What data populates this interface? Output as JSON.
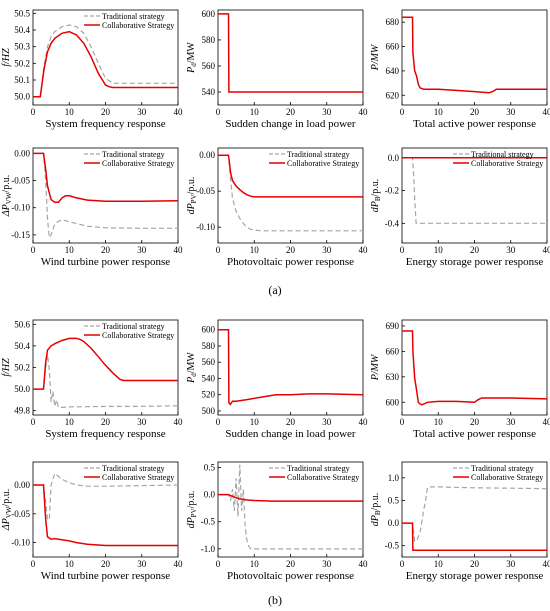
{
  "figure_labels": {
    "a": "(a)",
    "b": "(b)"
  },
  "colors": {
    "traditional": "#a6a6a6",
    "collaborative": "#e60000"
  },
  "chart_data": [
    {
      "group": "a",
      "type": "line",
      "title": "System frequency response",
      "ylabel": "f/HZ",
      "xlim": [
        0,
        40
      ],
      "ylim": [
        49.95,
        50.52
      ],
      "xticks": [
        0,
        10,
        20,
        30,
        40
      ],
      "yticks": [
        50.0,
        50.1,
        50.2,
        50.3,
        50.4,
        50.5
      ],
      "ytick_labels": [
        "50.0",
        "50.1",
        "50.2",
        "50.3",
        "50.4",
        "50.5"
      ],
      "legend": [
        "Traditional strategy",
        "Collaborative Strategy"
      ],
      "series": [
        {
          "name": "Traditional strategy",
          "style": "dashed",
          "x": [
            0,
            2,
            3,
            4,
            5,
            6,
            8,
            10,
            12,
            14,
            16,
            18,
            20,
            22,
            24,
            30,
            40
          ],
          "y": [
            50.0,
            50.0,
            50.18,
            50.3,
            50.36,
            50.39,
            50.42,
            50.43,
            50.42,
            50.38,
            50.3,
            50.2,
            50.11,
            50.08,
            50.08,
            50.08,
            50.08
          ]
        },
        {
          "name": "Collaborative Strategy",
          "style": "solid",
          "x": [
            0,
            2,
            3,
            4,
            5,
            6,
            8,
            10,
            12,
            14,
            16,
            18,
            20,
            21,
            22,
            24,
            30,
            40
          ],
          "y": [
            50.0,
            50.0,
            50.16,
            50.27,
            50.32,
            50.35,
            50.38,
            50.39,
            50.37,
            50.32,
            50.24,
            50.14,
            50.07,
            50.06,
            50.055,
            50.055,
            50.055,
            50.055
          ]
        }
      ]
    },
    {
      "group": "a",
      "type": "line",
      "title": "Sudden change in load power",
      "ylabel": "Pd/MW",
      "xlim": [
        0,
        40
      ],
      "ylim": [
        530,
        603
      ],
      "xticks": [
        0,
        10,
        20,
        30,
        40
      ],
      "yticks": [
        540,
        560,
        580,
        600
      ],
      "ytick_labels": [
        "540",
        "560",
        "580",
        "600"
      ],
      "legend": [],
      "series": [
        {
          "name": "",
          "style": "solid",
          "x": [
            0,
            2.9,
            3,
            40
          ],
          "y": [
            600,
            600,
            540,
            540
          ]
        }
      ]
    },
    {
      "group": "a",
      "type": "line",
      "title": "Total active power response",
      "ylabel": "P/MW",
      "xlim": [
        0,
        40
      ],
      "ylim": [
        612,
        690
      ],
      "xticks": [
        0,
        10,
        20,
        30,
        40
      ],
      "yticks": [
        620,
        640,
        660,
        680
      ],
      "ytick_labels": [
        "620",
        "640",
        "660",
        "680"
      ],
      "legend": [],
      "series": [
        {
          "name": "",
          "style": "solid",
          "x": [
            0,
            2.9,
            3,
            3.5,
            4,
            4.5,
            5,
            6,
            10,
            15,
            20,
            24,
            25,
            26,
            30,
            40
          ],
          "y": [
            684,
            684,
            655,
            640,
            636,
            629,
            626,
            625,
            625,
            624,
            623,
            622,
            623,
            625,
            625,
            625
          ]
        }
      ]
    },
    {
      "group": "a",
      "type": "line",
      "title": "Wind turbine power response",
      "ylabel": "ΔPVW/p.u.",
      "xlim": [
        0,
        40
      ],
      "ylim": [
        -0.165,
        0.01
      ],
      "xticks": [
        0,
        10,
        20,
        30,
        40
      ],
      "yticks": [
        0.0,
        -0.05,
        -0.1,
        -0.15
      ],
      "ytick_labels": [
        "0.00",
        "-0.05",
        "-0.10",
        "-0.15"
      ],
      "legend": [
        "Traditional strategy",
        "Collaborative Strategy"
      ],
      "series": [
        {
          "name": "Traditional strategy",
          "style": "dashed",
          "x": [
            0,
            2.9,
            3.5,
            4,
            4.5,
            5,
            6,
            7,
            8,
            10,
            15,
            20,
            30,
            40
          ],
          "y": [
            0,
            0,
            -0.05,
            -0.12,
            -0.155,
            -0.15,
            -0.13,
            -0.125,
            -0.122,
            -0.126,
            -0.134,
            -0.137,
            -0.138,
            -0.138
          ]
        },
        {
          "name": "Collaborative Strategy",
          "style": "solid",
          "x": [
            0,
            2.9,
            3.5,
            4,
            5,
            6,
            7,
            8,
            9,
            10,
            12,
            15,
            20,
            30,
            40
          ],
          "y": [
            0,
            0,
            -0.03,
            -0.06,
            -0.085,
            -0.09,
            -0.09,
            -0.082,
            -0.078,
            -0.078,
            -0.082,
            -0.086,
            -0.088,
            -0.088,
            -0.087
          ]
        }
      ]
    },
    {
      "group": "a",
      "type": "line",
      "title": "Photovoltaic power response",
      "ylabel": "dPPV/p.u.",
      "xlim": [
        0,
        40
      ],
      "ylim": [
        -0.122,
        0.01
      ],
      "xticks": [
        0,
        10,
        20,
        30,
        40
      ],
      "yticks": [
        0.0,
        -0.05,
        -0.1
      ],
      "ytick_labels": [
        "0.00",
        "-0.05",
        "-0.10"
      ],
      "legend": [
        "Traditional strategy",
        "Collaborative Strategy"
      ],
      "series": [
        {
          "name": "Traditional strategy",
          "style": "dashed",
          "x": [
            0,
            2.9,
            3.5,
            4,
            5,
            6,
            7,
            8,
            9,
            10,
            12,
            20,
            30,
            40
          ],
          "y": [
            0,
            0,
            -0.035,
            -0.06,
            -0.078,
            -0.088,
            -0.095,
            -0.1,
            -0.103,
            -0.104,
            -0.105,
            -0.105,
            -0.105,
            -0.105
          ]
        },
        {
          "name": "Collaborative Strategy",
          "style": "solid",
          "x": [
            0,
            2.9,
            3.5,
            4,
            5,
            6,
            7,
            8,
            9,
            10,
            12,
            20,
            30,
            40
          ],
          "y": [
            0,
            0,
            -0.025,
            -0.035,
            -0.043,
            -0.048,
            -0.052,
            -0.055,
            -0.057,
            -0.058,
            -0.058,
            -0.058,
            -0.058,
            -0.058
          ]
        }
      ]
    },
    {
      "group": "a",
      "type": "line",
      "title": "Energy storage power response",
      "ylabel": "dPB/p.u.",
      "xlim": [
        0,
        40
      ],
      "ylim": [
        -0.52,
        0.06
      ],
      "xticks": [
        0,
        10,
        20,
        30,
        40
      ],
      "yticks": [
        0.0,
        -0.2,
        -0.4
      ],
      "ytick_labels": [
        "0.0",
        "-0.2",
        "-0.4"
      ],
      "legend": [
        "Traditional strategy",
        "Collaborative Strategy"
      ],
      "series": [
        {
          "name": "Traditional strategy",
          "style": "dashed",
          "x": [
            0,
            2.9,
            3.2,
            3.5,
            3.9,
            4,
            10,
            20,
            30,
            40
          ],
          "y": [
            0,
            0,
            -0.1,
            -0.25,
            -0.4,
            -0.4,
            -0.4,
            -0.4,
            -0.4,
            -0.4
          ]
        },
        {
          "name": "Collaborative Strategy",
          "style": "solid",
          "x": [
            0,
            40
          ],
          "y": [
            0,
            0
          ]
        }
      ]
    },
    {
      "group": "b",
      "type": "line",
      "title": "System frequency response",
      "ylabel": "f/HZ",
      "xlim": [
        0,
        40
      ],
      "ylim": [
        49.76,
        50.64
      ],
      "xticks": [
        0,
        10,
        20,
        30,
        40
      ],
      "yticks": [
        49.8,
        50.0,
        50.2,
        50.4,
        50.6
      ],
      "ytick_labels": [
        "49.8",
        "50.0",
        "50.2",
        "50.4",
        "50.6"
      ],
      "legend": [
        "Traditional strategy",
        "Collaborative Strategy"
      ],
      "series": [
        {
          "name": "Traditional strategy",
          "style": "dashed",
          "x": [
            0,
            2.9,
            3.5,
            4,
            4.5,
            5,
            5.5,
            6,
            6.5,
            7,
            8,
            10,
            20,
            30,
            40
          ],
          "y": [
            50.0,
            50.0,
            50.2,
            50.32,
            50.18,
            49.88,
            49.98,
            49.84,
            49.9,
            49.83,
            49.83,
            49.835,
            49.84,
            49.84,
            49.845
          ]
        },
        {
          "name": "Collaborative Strategy",
          "style": "solid",
          "x": [
            0,
            2.9,
            3.5,
            4,
            5,
            6,
            8,
            10,
            12,
            13,
            14,
            16,
            18,
            20,
            22,
            24,
            25,
            30,
            40
          ],
          "y": [
            50.0,
            50.0,
            50.25,
            50.36,
            50.4,
            50.42,
            50.45,
            50.47,
            50.47,
            50.46,
            50.44,
            50.38,
            50.3,
            50.22,
            50.15,
            50.09,
            50.08,
            50.08,
            50.08
          ]
        }
      ]
    },
    {
      "group": "b",
      "type": "line",
      "title": "Sudden change in load power",
      "ylabel": "Pd/MW",
      "xlim": [
        0,
        40
      ],
      "ylim": [
        495,
        612
      ],
      "xticks": [
        0,
        10,
        20,
        30,
        40
      ],
      "yticks": [
        500,
        520,
        540,
        560,
        580,
        600
      ],
      "ytick_labels": [
        "500",
        "520",
        "540",
        "560",
        "580",
        "600"
      ],
      "legend": [],
      "series": [
        {
          "name": "",
          "style": "solid",
          "x": [
            0,
            2.9,
            3,
            3.4,
            4,
            5,
            8,
            12,
            16,
            20,
            25,
            30,
            40
          ],
          "y": [
            600,
            600,
            510,
            508,
            512,
            512,
            514,
            517,
            520,
            520,
            521,
            521,
            520
          ]
        }
      ]
    },
    {
      "group": "b",
      "type": "line",
      "title": "Total active power response",
      "ylabel": "P/MW",
      "xlim": [
        0,
        40
      ],
      "ylim": [
        585,
        697
      ],
      "xticks": [
        0,
        10,
        20,
        30,
        40
      ],
      "yticks": [
        600,
        630,
        660,
        690
      ],
      "ytick_labels": [
        "600",
        "630",
        "660",
        "690"
      ],
      "legend": [],
      "series": [
        {
          "name": "",
          "style": "solid",
          "x": [
            0,
            2.9,
            3,
            3.5,
            4,
            4.5,
            5,
            5.5,
            6,
            7,
            10,
            15,
            20,
            21,
            22,
            25,
            30,
            40
          ],
          "y": [
            684,
            684,
            660,
            628,
            615,
            600,
            598,
            597,
            598,
            600,
            601,
            601,
            600,
            603,
            605,
            605,
            605,
            604
          ]
        }
      ]
    },
    {
      "group": "b",
      "type": "line",
      "title": "Wind turbine power response",
      "ylabel": "ΔPVW/p.u.",
      "xlim": [
        0,
        40
      ],
      "ylim": [
        -0.125,
        0.04
      ],
      "xticks": [
        0,
        10,
        20,
        30,
        40
      ],
      "yticks": [
        0.0,
        -0.05,
        -0.1
      ],
      "ytick_labels": [
        "0.00",
        "-0.05",
        "-0.10"
      ],
      "legend": [
        "Traditional strategy",
        "Collaborative Strategy"
      ],
      "series": [
        {
          "name": "Traditional strategy",
          "style": "dashed",
          "x": [
            0,
            2.9,
            3.5,
            4,
            4.5,
            5,
            6,
            7,
            8,
            10,
            12,
            15,
            20,
            30,
            40
          ],
          "y": [
            0,
            0,
            -0.03,
            -0.06,
            -0.06,
            0.0,
            0.02,
            0.015,
            0.01,
            0.004,
            0.0,
            -0.002,
            -0.002,
            -0.001,
            0.0
          ]
        },
        {
          "name": "Collaborative Strategy",
          "style": "solid",
          "x": [
            0,
            2.9,
            3.5,
            4,
            5,
            6,
            8,
            10,
            12,
            15,
            20,
            25,
            30,
            40
          ],
          "y": [
            0,
            0,
            -0.06,
            -0.09,
            -0.094,
            -0.093,
            -0.095,
            -0.097,
            -0.1,
            -0.103,
            -0.105,
            -0.105,
            -0.105,
            -0.105
          ]
        }
      ]
    },
    {
      "group": "b",
      "type": "line",
      "title": "Photovoltaic power response",
      "ylabel": "dPPV/p.u.",
      "xlim": [
        0,
        40
      ],
      "ylim": [
        -1.15,
        0.6
      ],
      "xticks": [
        0,
        10,
        20,
        30,
        40
      ],
      "yticks": [
        0.5,
        0.0,
        -0.5,
        -1.0
      ],
      "ytick_labels": [
        "0.5",
        "0.0",
        "-0.5",
        "-1.0"
      ],
      "legend": [
        "Traditional strategy",
        "Collaborative Strategy"
      ],
      "series": [
        {
          "name": "Traditional strategy",
          "style": "dashed",
          "x": [
            0,
            2.9,
            3.5,
            4,
            4.5,
            5,
            5.5,
            6,
            6.5,
            7,
            7.5,
            8,
            8.5,
            9,
            10,
            20,
            30,
            40
          ],
          "y": [
            0,
            0,
            -0.1,
            0.1,
            -0.3,
            0.3,
            -0.4,
            0.55,
            -0.3,
            0.1,
            -0.6,
            -0.85,
            -0.95,
            -1.0,
            -1.0,
            -1.0,
            -1.0,
            -1.0
          ]
        },
        {
          "name": "Collaborative Strategy",
          "style": "solid",
          "x": [
            0,
            2.9,
            3.5,
            4,
            5,
            6,
            8,
            10,
            15,
            20,
            30,
            40
          ],
          "y": [
            0,
            0,
            -0.02,
            -0.03,
            -0.06,
            -0.08,
            -0.1,
            -0.11,
            -0.12,
            -0.12,
            -0.12,
            -0.12
          ]
        }
      ]
    },
    {
      "group": "b",
      "type": "line",
      "title": "Energy storage power response",
      "ylabel": "dPB/p.u.",
      "xlim": [
        0,
        40
      ],
      "ylim": [
        -0.75,
        1.35
      ],
      "xticks": [
        0,
        10,
        20,
        30,
        40
      ],
      "yticks": [
        1.0,
        0.5,
        0.0,
        -0.5
      ],
      "ytick_labels": [
        "1.0",
        "0.5",
        "0.0",
        "-0.5"
      ],
      "legend": [
        "Traditional strategy",
        "Collaborative Strategy"
      ],
      "series": [
        {
          "name": "Traditional strategy",
          "style": "dashed",
          "x": [
            0,
            2.9,
            3.5,
            4,
            5,
            6,
            6.5,
            7,
            7.5,
            8,
            10,
            20,
            30,
            40
          ],
          "y": [
            0,
            0,
            -0.4,
            -0.4,
            -0.2,
            0.3,
            0.5,
            0.78,
            0.8,
            0.8,
            0.8,
            0.78,
            0.77,
            0.76
          ]
        },
        {
          "name": "Collaborative Strategy",
          "style": "solid",
          "x": [
            0,
            2.9,
            3,
            40
          ],
          "y": [
            0,
            0,
            -0.6,
            -0.6
          ]
        }
      ]
    }
  ]
}
